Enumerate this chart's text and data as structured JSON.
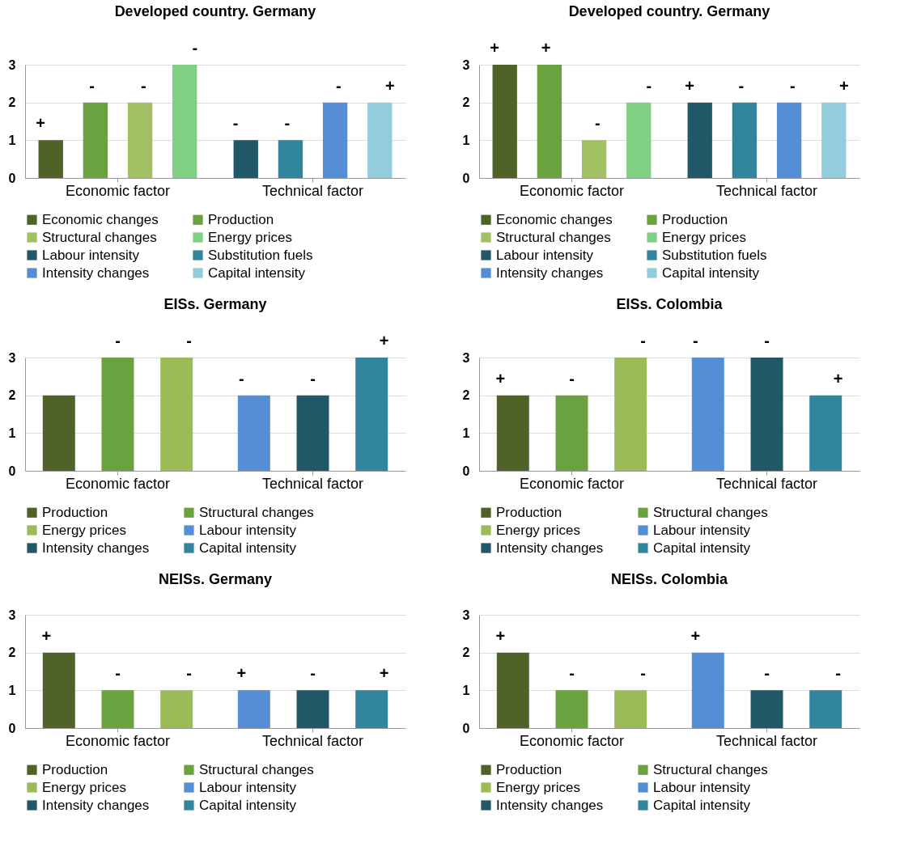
{
  "chart_data": [
    {
      "type": "bar",
      "title": "Developed country. Germany",
      "categories": [
        "Economic factor",
        "Technical factor"
      ],
      "ylim": [
        0,
        3
      ],
      "yticks": [
        0,
        1,
        2,
        3
      ],
      "grid": "y",
      "legend": "bottom",
      "series": [
        {
          "name": "Economic changes",
          "color": "#4f6228",
          "values": [
            1,
            null
          ],
          "value_labels": [
            "+",
            null
          ]
        },
        {
          "name": "Production",
          "color": "#6aa23f",
          "values": [
            2,
            null
          ],
          "value_labels": [
            "-",
            null
          ]
        },
        {
          "name": "Structural changes",
          "color": "#a0c063",
          "values": [
            2,
            null
          ],
          "value_labels": [
            "-",
            null
          ]
        },
        {
          "name": "Energy prices",
          "color": "#7fd085",
          "values": [
            3,
            null
          ],
          "value_labels": [
            "-",
            null
          ]
        },
        {
          "name": "Labour intensity",
          "color": "#215868",
          "values": [
            null,
            1
          ],
          "value_labels": [
            null,
            "-"
          ]
        },
        {
          "name": "Substitution fuels",
          "color": "#31859c",
          "values": [
            null,
            1
          ],
          "value_labels": [
            null,
            "-"
          ]
        },
        {
          "name": "Intensity changes",
          "color": "#558ed5",
          "values": [
            null,
            2
          ],
          "value_labels": [
            null,
            "-"
          ]
        },
        {
          "name": "Capital intensity",
          "color": "#93cddd",
          "values": [
            null,
            2
          ],
          "value_labels": [
            null,
            "+"
          ]
        }
      ]
    },
    {
      "type": "bar",
      "title": "Developed country. Germany",
      "categories": [
        "Economic factor",
        "Technical factor"
      ],
      "ylim": [
        0,
        3
      ],
      "yticks": [
        0,
        1,
        2,
        3
      ],
      "grid": "y",
      "legend": "bottom",
      "series": [
        {
          "name": "Economic changes",
          "color": "#4f6228",
          "values": [
            3,
            null
          ],
          "value_labels": [
            "+",
            null
          ]
        },
        {
          "name": "Production",
          "color": "#6aa23f",
          "values": [
            3,
            null
          ],
          "value_labels": [
            "+",
            null
          ]
        },
        {
          "name": "Structural changes",
          "color": "#a0c063",
          "values": [
            1,
            null
          ],
          "value_labels": [
            "-",
            null
          ]
        },
        {
          "name": "Energy prices",
          "color": "#7fd085",
          "values": [
            2,
            null
          ],
          "value_labels": [
            "-",
            null
          ]
        },
        {
          "name": "Labour intensity",
          "color": "#215868",
          "values": [
            null,
            2
          ],
          "value_labels": [
            null,
            "+"
          ]
        },
        {
          "name": "Substitution fuels",
          "color": "#31859c",
          "values": [
            null,
            2
          ],
          "value_labels": [
            null,
            "-"
          ]
        },
        {
          "name": "Intensity changes",
          "color": "#558ed5",
          "values": [
            null,
            2
          ],
          "value_labels": [
            null,
            "-"
          ]
        },
        {
          "name": "Capital intensity",
          "color": "#93cddd",
          "values": [
            null,
            2
          ],
          "value_labels": [
            null,
            "+"
          ]
        }
      ]
    },
    {
      "type": "bar",
      "title": "EISs. Germany",
      "categories": [
        "Economic factor",
        "Technical factor"
      ],
      "ylim": [
        0,
        3
      ],
      "yticks": [
        0,
        1,
        2,
        3
      ],
      "grid": "y",
      "legend": "bottom",
      "series": [
        {
          "name": "Production",
          "color": "#4f6228",
          "values": [
            2,
            null
          ],
          "value_labels": [
            null,
            null
          ]
        },
        {
          "name": "Structural changes",
          "color": "#6aa23f",
          "values": [
            3,
            null
          ],
          "value_labels": [
            "-",
            null
          ]
        },
        {
          "name": "Energy prices",
          "color": "#9bbb59",
          "values": [
            3,
            null
          ],
          "value_labels": [
            "-",
            null
          ]
        },
        {
          "name": "Labour intensity",
          "color": "#558ed5",
          "values": [
            null,
            2
          ],
          "value_labels": [
            null,
            "-"
          ]
        },
        {
          "name": "Intensity changes",
          "color": "#215868",
          "values": [
            null,
            2
          ],
          "value_labels": [
            null,
            "-"
          ]
        },
        {
          "name": "Capital intensity",
          "color": "#31859c",
          "values": [
            null,
            3
          ],
          "value_labels": [
            null,
            "+"
          ]
        }
      ]
    },
    {
      "type": "bar",
      "title": "EISs.  Colombia",
      "categories": [
        "Economic factor",
        "Technical factor"
      ],
      "ylim": [
        0,
        3
      ],
      "yticks": [
        0,
        1,
        2,
        3
      ],
      "grid": "y",
      "legend": "bottom",
      "series": [
        {
          "name": "Production",
          "color": "#4f6228",
          "values": [
            2,
            null
          ],
          "value_labels": [
            "+",
            null
          ]
        },
        {
          "name": "Structural changes",
          "color": "#6aa23f",
          "values": [
            2,
            null
          ],
          "value_labels": [
            "-",
            null
          ]
        },
        {
          "name": "Energy prices",
          "color": "#9bbb59",
          "values": [
            3,
            null
          ],
          "value_labels": [
            "-",
            null
          ]
        },
        {
          "name": "Labour intensity",
          "color": "#558ed5",
          "values": [
            null,
            3
          ],
          "value_labels": [
            null,
            "-"
          ]
        },
        {
          "name": "Intensity changes",
          "color": "#215868",
          "values": [
            null,
            3
          ],
          "value_labels": [
            null,
            "-"
          ]
        },
        {
          "name": "Capital intensity",
          "color": "#31859c",
          "values": [
            null,
            2
          ],
          "value_labels": [
            null,
            "+"
          ]
        }
      ]
    },
    {
      "type": "bar",
      "title": "NEISs. Germany",
      "categories": [
        "Economic factor",
        "Technical factor"
      ],
      "ylim": [
        0,
        3
      ],
      "yticks": [
        0,
        1,
        2,
        3
      ],
      "grid": "y",
      "legend": "bottom",
      "series": [
        {
          "name": "Production",
          "color": "#4f6228",
          "values": [
            2,
            null
          ],
          "value_labels": [
            "+",
            null
          ]
        },
        {
          "name": "Structural changes",
          "color": "#6aa23f",
          "values": [
            1,
            null
          ],
          "value_labels": [
            "-",
            null
          ]
        },
        {
          "name": "Energy prices",
          "color": "#9bbb59",
          "values": [
            1,
            null
          ],
          "value_labels": [
            "-",
            null
          ]
        },
        {
          "name": "Labour intensity",
          "color": "#558ed5",
          "values": [
            null,
            1
          ],
          "value_labels": [
            null,
            "+"
          ]
        },
        {
          "name": "Intensity changes",
          "color": "#215868",
          "values": [
            null,
            1
          ],
          "value_labels": [
            null,
            "-"
          ]
        },
        {
          "name": "Capital intensity",
          "color": "#31859c",
          "values": [
            null,
            1
          ],
          "value_labels": [
            null,
            "+"
          ]
        }
      ]
    },
    {
      "type": "bar",
      "title": "NEISs.  Colombia",
      "categories": [
        "Economic factor",
        "Technical factor"
      ],
      "ylim": [
        0,
        3
      ],
      "yticks": [
        0,
        1,
        2,
        3
      ],
      "grid": "y",
      "legend": "bottom",
      "series": [
        {
          "name": "Production",
          "color": "#4f6228",
          "values": [
            2,
            null
          ],
          "value_labels": [
            "+",
            null
          ]
        },
        {
          "name": "Structural changes",
          "color": "#6aa23f",
          "values": [
            1,
            null
          ],
          "value_labels": [
            "-",
            null
          ]
        },
        {
          "name": "Energy prices",
          "color": "#9bbb59",
          "values": [
            1,
            null
          ],
          "value_labels": [
            "-",
            null
          ]
        },
        {
          "name": "Labour intensity",
          "color": "#558ed5",
          "values": [
            null,
            2
          ],
          "value_labels": [
            null,
            "+"
          ]
        },
        {
          "name": "Intensity changes",
          "color": "#215868",
          "values": [
            null,
            1
          ],
          "value_labels": [
            null,
            "-"
          ]
        },
        {
          "name": "Capital intensity",
          "color": "#31859c",
          "values": [
            null,
            1
          ],
          "value_labels": [
            null,
            "-"
          ]
        }
      ]
    }
  ]
}
